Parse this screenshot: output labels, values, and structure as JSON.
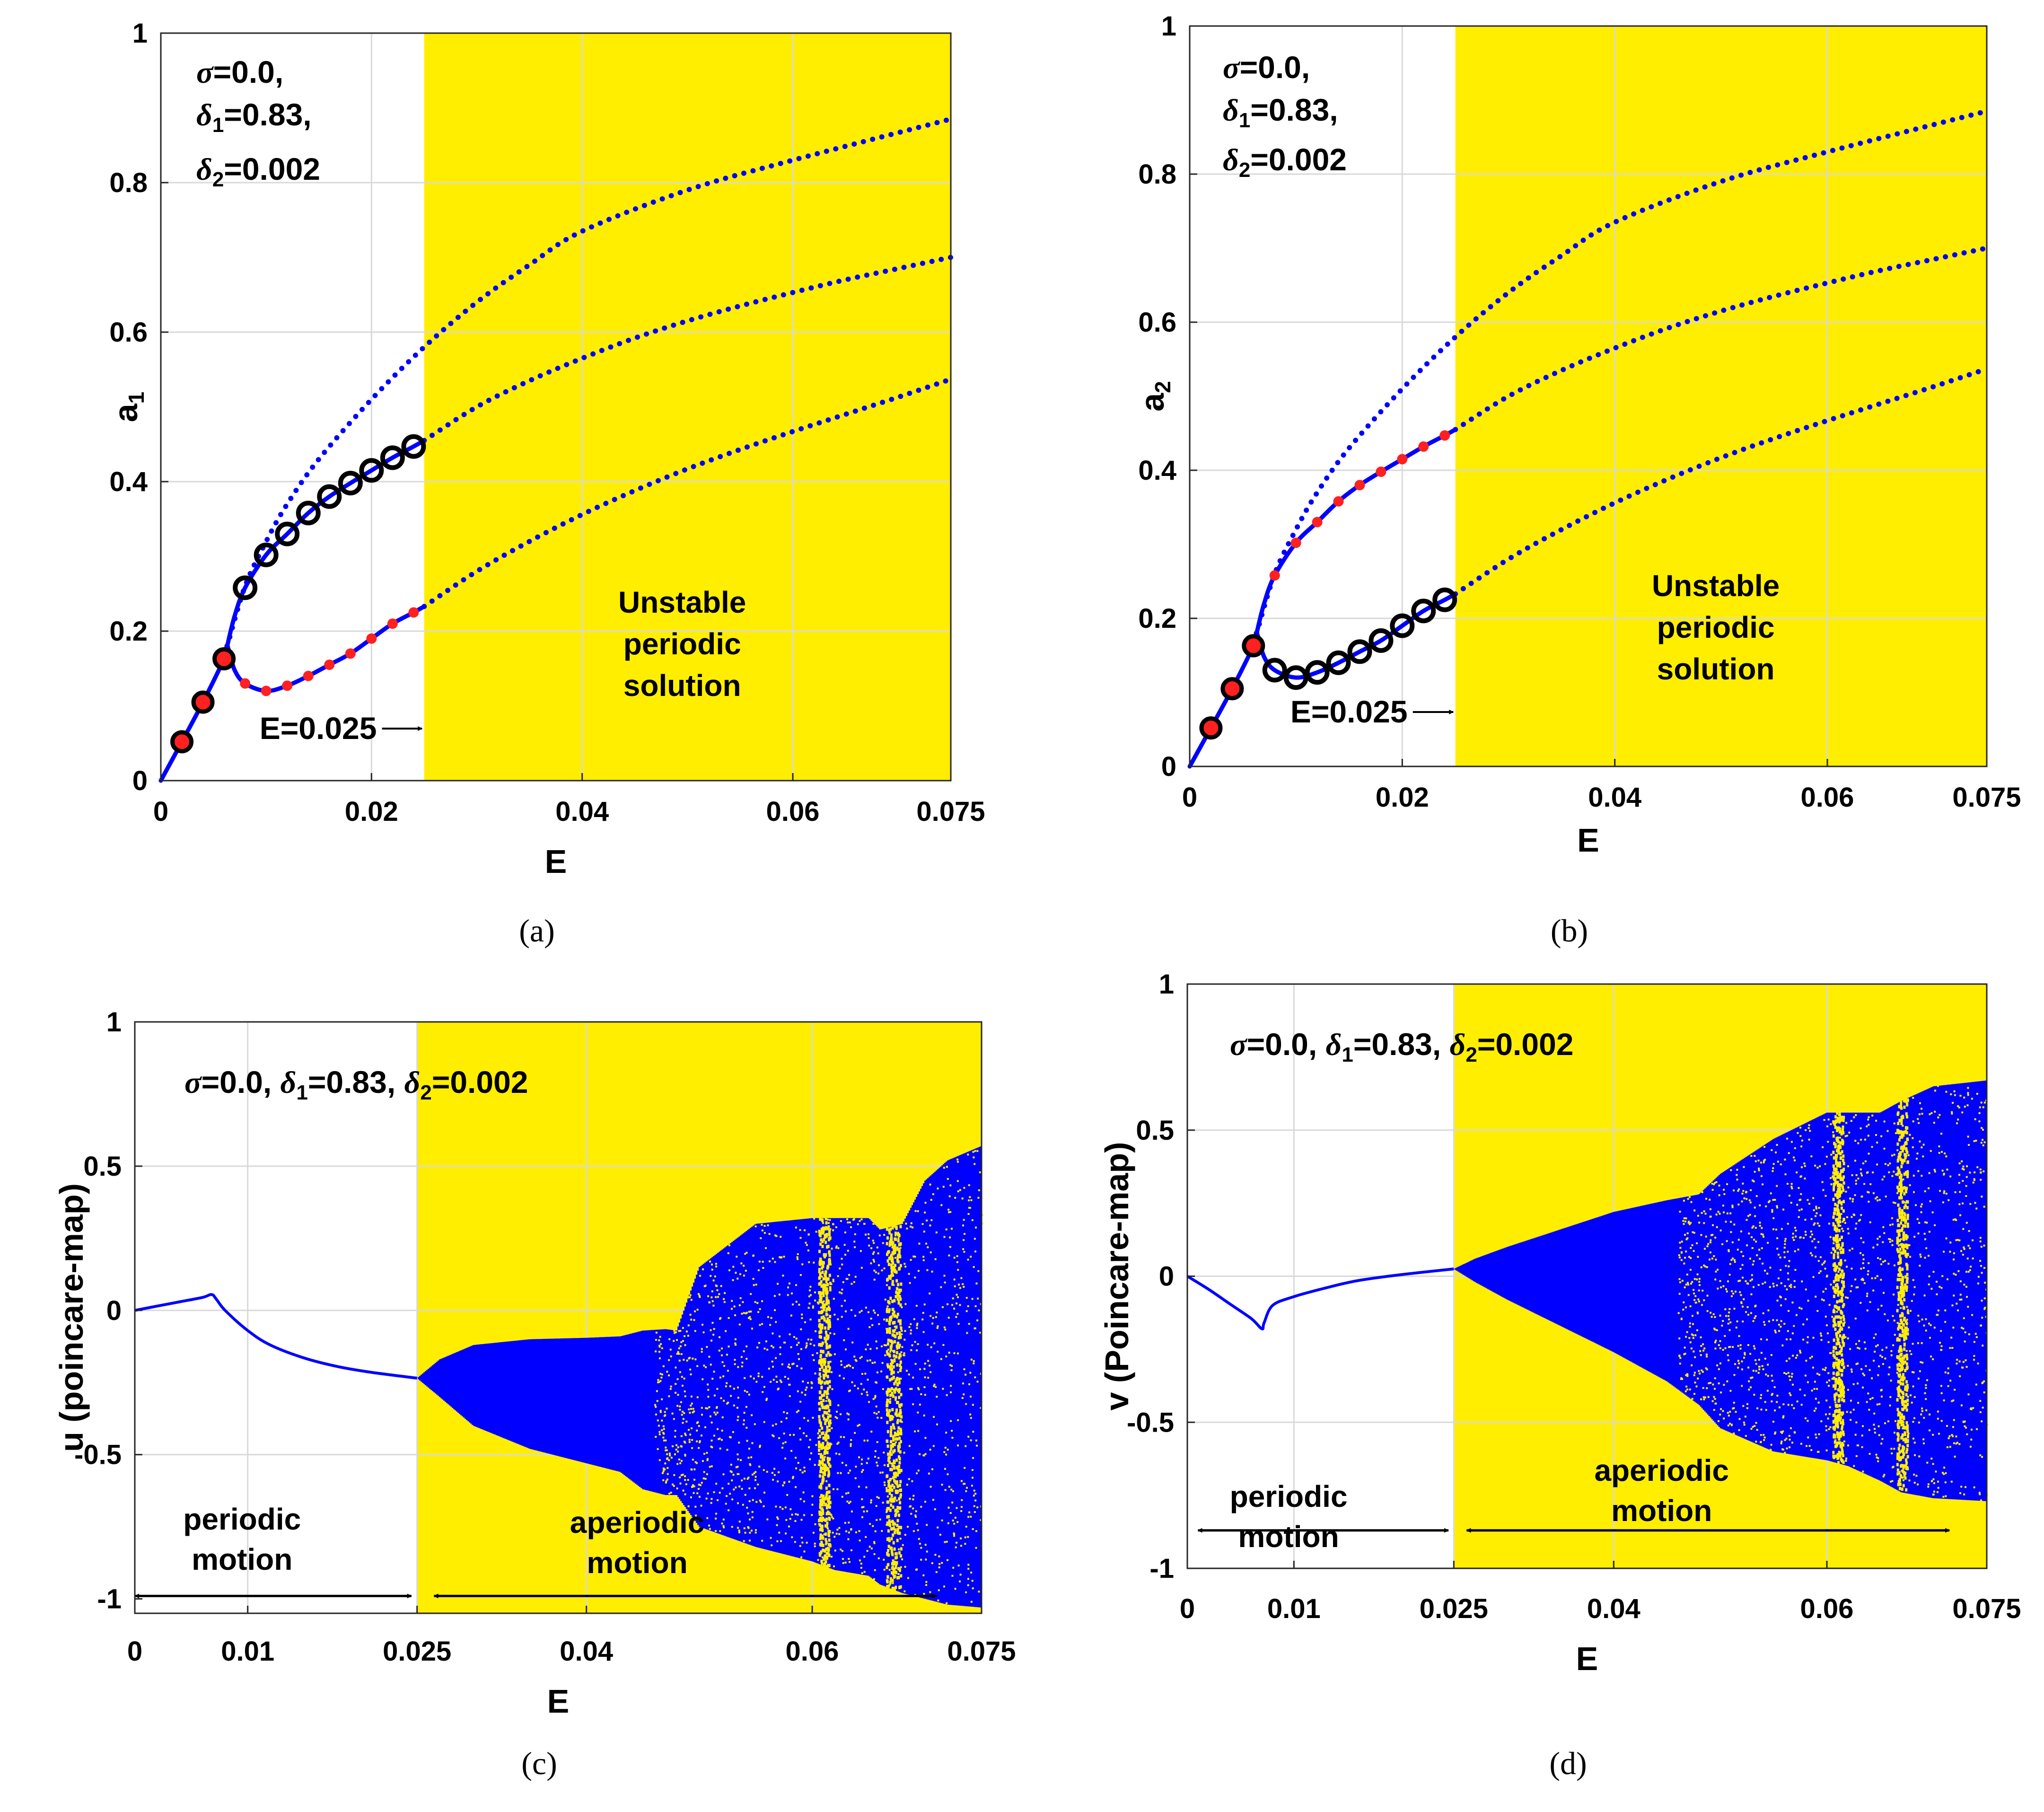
{
  "colors": {
    "unstable_fill": "#FFEE00",
    "curve": "#0000FF",
    "marker_red": "#FF2020",
    "marker_ring": "#000000",
    "grid": "#D9D9D9"
  },
  "params_lines": [
    "σ=0.0,",
    "δ1=0.83,",
    "δ2=0.002"
  ],
  "params_inline": "σ=0.0, δ1=0.83, δ2=0.002",
  "chart_data": [
    {
      "type": "line",
      "id": "a",
      "caption": "(a)",
      "xlabel": "E",
      "ylabel": "a1",
      "xlim": [
        0,
        0.075
      ],
      "ylim": [
        0,
        1
      ],
      "xticks": [
        0,
        0.02,
        0.04,
        0.06,
        0.075
      ],
      "xtick_labels": [
        "0",
        "0.02",
        "0.04",
        "0.06",
        "0.075"
      ],
      "yticks": [
        0,
        0.2,
        0.4,
        0.6,
        0.8,
        1
      ],
      "ytick_labels": [
        "0",
        "0.2",
        "0.4",
        "0.6",
        "0.8",
        "1"
      ],
      "unstable_region": [
        0.025,
        0.075
      ],
      "region_label": "Unstable periodic solution",
      "annotation": "E=0.025",
      "series": [
        {
          "name": "lower branch solid",
          "style": "solid",
          "x": [
            0,
            0.002,
            0.004,
            0.006,
            0.0063,
            0.007,
            0.008,
            0.01,
            0.012,
            0.014,
            0.016,
            0.018,
            0.02,
            0.022,
            0.024,
            0.025
          ],
          "y": [
            0,
            0.052,
            0.105,
            0.163,
            0.18,
            0.148,
            0.13,
            0.12,
            0.127,
            0.14,
            0.155,
            0.17,
            0.19,
            0.21,
            0.225,
            0.233
          ]
        },
        {
          "name": "middle branch solid",
          "style": "solid",
          "x": [
            0.0063,
            0.007,
            0.008,
            0.01,
            0.012,
            0.014,
            0.016,
            0.018,
            0.02,
            0.022,
            0.024,
            0.025
          ],
          "y": [
            0.18,
            0.22,
            0.258,
            0.302,
            0.33,
            0.358,
            0.38,
            0.398,
            0.415,
            0.432,
            0.447,
            0.455
          ]
        },
        {
          "name": "upper branch dotted",
          "style": "dotted",
          "x": [
            0.0063,
            0.008,
            0.01,
            0.012,
            0.015,
            0.02,
            0.025,
            0.03,
            0.035,
            0.04,
            0.05,
            0.06,
            0.075
          ],
          "y": [
            0.18,
            0.26,
            0.32,
            0.37,
            0.43,
            0.51,
            0.58,
            0.64,
            0.69,
            0.735,
            0.79,
            0.83,
            0.885
          ]
        },
        {
          "name": "middle branch dotted",
          "style": "dotted",
          "x": [
            0.025,
            0.03,
            0.035,
            0.04,
            0.045,
            0.05,
            0.055,
            0.06,
            0.065,
            0.07,
            0.075
          ],
          "y": [
            0.455,
            0.5,
            0.535,
            0.565,
            0.592,
            0.615,
            0.635,
            0.653,
            0.67,
            0.685,
            0.7
          ]
        },
        {
          "name": "lower branch dotted",
          "style": "dotted",
          "x": [
            0.025,
            0.03,
            0.035,
            0.04,
            0.045,
            0.05,
            0.055,
            0.06,
            0.065,
            0.07,
            0.075
          ],
          "y": [
            0.233,
            0.28,
            0.32,
            0.356,
            0.388,
            0.417,
            0.443,
            0.467,
            0.49,
            0.513,
            0.537
          ]
        }
      ],
      "markers": [
        {
          "kind": "red-filled-ringed",
          "x": [
            0.002,
            0.004,
            0.006
          ],
          "y": [
            0.052,
            0.105,
            0.163
          ]
        },
        {
          "kind": "black-ring",
          "x": [
            0.008,
            0.01,
            0.012,
            0.014,
            0.016,
            0.018,
            0.02,
            0.022,
            0.024
          ],
          "y": [
            0.258,
            0.302,
            0.33,
            0.358,
            0.38,
            0.398,
            0.415,
            0.432,
            0.447
          ]
        },
        {
          "kind": "red-dot",
          "x": [
            0.008,
            0.01,
            0.012,
            0.014,
            0.016,
            0.018,
            0.02,
            0.022,
            0.024
          ],
          "y": [
            0.13,
            0.12,
            0.127,
            0.14,
            0.155,
            0.17,
            0.19,
            0.21,
            0.225
          ]
        }
      ]
    },
    {
      "type": "line",
      "id": "b",
      "caption": "(b)",
      "xlabel": "E",
      "ylabel": "a2",
      "xlim": [
        0,
        0.075
      ],
      "ylim": [
        0,
        1
      ],
      "xticks": [
        0,
        0.02,
        0.04,
        0.06,
        0.075
      ],
      "xtick_labels": [
        "0",
        "0.02",
        "0.04",
        "0.06",
        "0.075"
      ],
      "yticks": [
        0,
        0.2,
        0.4,
        0.6,
        0.8,
        1
      ],
      "ytick_labels": [
        "0",
        "0.2",
        "0.4",
        "0.6",
        "0.8",
        "1"
      ],
      "unstable_region": [
        0.025,
        0.075
      ],
      "region_label": "Unstable periodic solution",
      "annotation": "E=0.025",
      "series": [
        {
          "name": "lower branch solid",
          "style": "solid",
          "x": [
            0,
            0.002,
            0.004,
            0.006,
            0.0063,
            0.007,
            0.008,
            0.01,
            0.012,
            0.014,
            0.016,
            0.018,
            0.02,
            0.022,
            0.024,
            0.025
          ],
          "y": [
            0,
            0.052,
            0.105,
            0.163,
            0.18,
            0.148,
            0.13,
            0.12,
            0.127,
            0.14,
            0.155,
            0.17,
            0.19,
            0.21,
            0.225,
            0.233
          ]
        },
        {
          "name": "middle branch solid",
          "style": "solid",
          "x": [
            0.0063,
            0.007,
            0.008,
            0.01,
            0.012,
            0.014,
            0.016,
            0.018,
            0.02,
            0.022,
            0.024,
            0.025
          ],
          "y": [
            0.18,
            0.22,
            0.258,
            0.302,
            0.33,
            0.358,
            0.38,
            0.398,
            0.415,
            0.432,
            0.447,
            0.455
          ]
        },
        {
          "name": "upper branch dotted",
          "style": "dotted",
          "x": [
            0.0063,
            0.008,
            0.01,
            0.012,
            0.015,
            0.02,
            0.025,
            0.03,
            0.035,
            0.04,
            0.05,
            0.06,
            0.075
          ],
          "y": [
            0.18,
            0.26,
            0.32,
            0.37,
            0.43,
            0.51,
            0.58,
            0.64,
            0.69,
            0.735,
            0.79,
            0.83,
            0.885
          ]
        },
        {
          "name": "middle branch dotted",
          "style": "dotted",
          "x": [
            0.025,
            0.03,
            0.035,
            0.04,
            0.045,
            0.05,
            0.055,
            0.06,
            0.065,
            0.07,
            0.075
          ],
          "y": [
            0.455,
            0.5,
            0.535,
            0.565,
            0.592,
            0.615,
            0.635,
            0.653,
            0.67,
            0.685,
            0.7
          ]
        },
        {
          "name": "lower branch dotted",
          "style": "dotted",
          "x": [
            0.025,
            0.03,
            0.035,
            0.04,
            0.045,
            0.05,
            0.055,
            0.06,
            0.065,
            0.07,
            0.075
          ],
          "y": [
            0.233,
            0.28,
            0.32,
            0.356,
            0.388,
            0.417,
            0.443,
            0.467,
            0.49,
            0.513,
            0.537
          ]
        }
      ],
      "markers": [
        {
          "kind": "red-filled-ringed",
          "x": [
            0.002,
            0.004,
            0.006
          ],
          "y": [
            0.052,
            0.105,
            0.163
          ]
        },
        {
          "kind": "red-dot",
          "x": [
            0.008,
            0.01,
            0.012,
            0.014,
            0.016,
            0.018,
            0.02,
            0.022,
            0.024
          ],
          "y": [
            0.258,
            0.302,
            0.33,
            0.358,
            0.38,
            0.398,
            0.415,
            0.432,
            0.447
          ]
        },
        {
          "kind": "black-ring",
          "x": [
            0.008,
            0.01,
            0.012,
            0.014,
            0.016,
            0.018,
            0.02,
            0.022,
            0.024
          ],
          "y": [
            0.13,
            0.12,
            0.127,
            0.14,
            0.155,
            0.17,
            0.19,
            0.21,
            0.225
          ]
        }
      ]
    },
    {
      "type": "scatter",
      "id": "c",
      "caption": "(c)",
      "xlabel": "E",
      "ylabel": "u (poincare-map)",
      "xlim": [
        0,
        0.075
      ],
      "ylim": [
        -1.05,
        1
      ],
      "xticks": [
        0,
        0.01,
        0.025,
        0.04,
        0.06,
        0.075
      ],
      "xtick_labels": [
        "0",
        "0.01",
        "0.025",
        "0.04",
        "0.06",
        "0.075"
      ],
      "yticks": [
        -1,
        -0.5,
        0,
        0.5,
        1
      ],
      "ytick_labels": [
        "-1",
        "-0.5",
        "0",
        "0.5",
        "1"
      ],
      "unstable_region": [
        0.025,
        0.075
      ],
      "left_label": [
        "periodic",
        "motion"
      ],
      "right_label": [
        "aperiodic",
        "motion"
      ],
      "arrows": [
        [
          0.0,
          0.0245
        ],
        [
          0.0265,
          0.071
        ]
      ],
      "arrow_y": -0.99,
      "periodic_curve": {
        "x": [
          0,
          0.002,
          0.004,
          0.006,
          0.0068,
          0.0072,
          0.008,
          0.01,
          0.012,
          0.015,
          0.018,
          0.021,
          0.025
        ],
        "y": [
          0,
          0.015,
          0.03,
          0.045,
          0.055,
          0.04,
          0.0,
          -0.07,
          -0.12,
          -0.165,
          -0.195,
          -0.215,
          -0.235
        ]
      },
      "band": {
        "x": [
          0.025,
          0.027,
          0.03,
          0.035,
          0.04,
          0.043,
          0.045,
          0.047,
          0.048,
          0.05,
          0.055,
          0.06,
          0.062,
          0.065,
          0.066,
          0.068,
          0.07,
          0.072,
          0.075
        ],
        "top": [
          -0.235,
          -0.17,
          -0.12,
          -0.1,
          -0.095,
          -0.09,
          -0.07,
          -0.065,
          -0.07,
          0.15,
          0.3,
          0.32,
          0.32,
          0.32,
          0.28,
          0.3,
          0.45,
          0.52,
          0.57
        ],
        "bottom": [
          -0.235,
          -0.3,
          -0.4,
          -0.48,
          -0.53,
          -0.56,
          -0.62,
          -0.64,
          -0.64,
          -0.75,
          -0.82,
          -0.87,
          -0.9,
          -0.92,
          -0.95,
          -0.98,
          -1.0,
          -1.02,
          -1.03
        ]
      },
      "gaps": [
        0.0605,
        0.0615,
        0.0665,
        0.0678
      ]
    },
    {
      "type": "scatter",
      "id": "d",
      "caption": "(d)",
      "xlabel": "E",
      "ylabel": "v (Poincare-map)",
      "xlim": [
        0,
        0.075
      ],
      "ylim": [
        -1,
        1
      ],
      "xticks": [
        0,
        0.01,
        0.025,
        0.04,
        0.06,
        0.075
      ],
      "xtick_labels": [
        "0",
        "0.01",
        "0.025",
        "0.04",
        "0.06",
        "0.075"
      ],
      "yticks": [
        -1,
        -0.5,
        0,
        0.5,
        1
      ],
      "ytick_labels": [
        "-1",
        "-0.5",
        "0",
        "0.5",
        "1"
      ],
      "unstable_region": [
        0.025,
        0.075
      ],
      "left_label": [
        "periodic",
        "motion"
      ],
      "right_label": [
        "aperiodic",
        "motion"
      ],
      "arrows": [
        [
          0.001,
          0.0245
        ],
        [
          0.0262,
          0.0715
        ]
      ],
      "arrow_y": -0.87,
      "periodic_curve": {
        "x": [
          0,
          0.002,
          0.004,
          0.006,
          0.007,
          0.0072,
          0.008,
          0.01,
          0.013,
          0.016,
          0.02,
          0.025
        ],
        "y": [
          0,
          -0.045,
          -0.095,
          -0.145,
          -0.18,
          -0.16,
          -0.1,
          -0.07,
          -0.04,
          -0.015,
          0.005,
          0.025
        ]
      },
      "band": {
        "x": [
          0.025,
          0.027,
          0.03,
          0.035,
          0.04,
          0.045,
          0.048,
          0.05,
          0.055,
          0.06,
          0.062,
          0.065,
          0.067,
          0.07,
          0.075
        ],
        "top": [
          0.025,
          0.06,
          0.1,
          0.16,
          0.22,
          0.26,
          0.28,
          0.35,
          0.47,
          0.56,
          0.56,
          0.56,
          0.6,
          0.65,
          0.67
        ],
        "bottom": [
          0.025,
          -0.02,
          -0.08,
          -0.17,
          -0.26,
          -0.36,
          -0.44,
          -0.52,
          -0.6,
          -0.63,
          -0.65,
          -0.7,
          -0.74,
          -0.76,
          -0.77
        ]
      },
      "gaps": [
        0.0605,
        0.0615,
        0.0665,
        0.0675
      ]
    }
  ]
}
